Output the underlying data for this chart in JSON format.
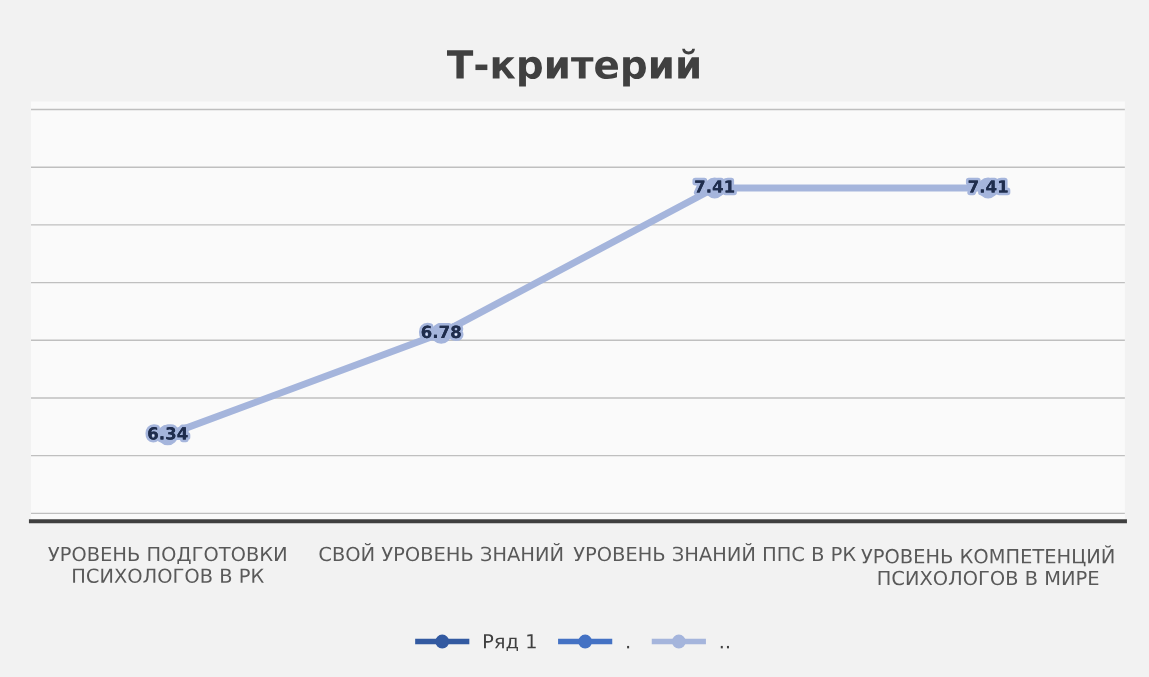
{
  "chart_data": {
    "type": "line",
    "title": "Т-критерий",
    "categories": [
      "УРОВЕНЬ ПОДГОТОВКИ ПСИХОЛОГОВ В РК",
      "СВОЙ УРОВЕНЬ ЗНАНИЙ",
      "УРОВЕНЬ ЗНАНИЙ ППС В РК",
      "УРОВЕНЬ КОМПЕТЕНЦИЙ ПСИХОЛОГОВ В МИРЕ"
    ],
    "series": [
      {
        "name": "Ряд 1",
        "color": "#335aa1",
        "values": [
          null,
          null,
          null,
          null
        ]
      },
      {
        "name": ".",
        "color": "#4472c4",
        "values": [
          null,
          null,
          null,
          null
        ]
      },
      {
        "name": "..",
        "color": "#a5b5dc",
        "values": [
          6.34,
          6.78,
          7.41,
          7.41
        ]
      }
    ],
    "tick_labels": "x",
    "grid": "y",
    "legend": "bottom",
    "marker": "circle",
    "line_style": "solid",
    "data_labels": true
  }
}
